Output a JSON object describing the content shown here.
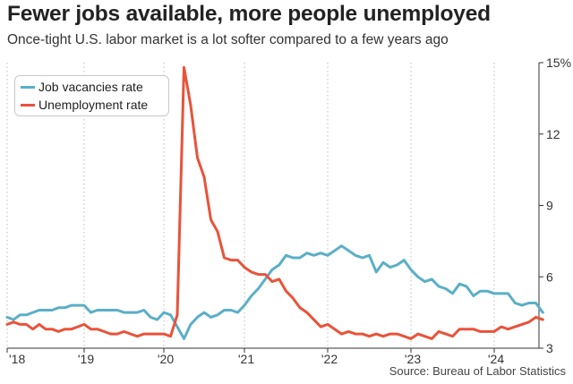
{
  "chart_data": {
    "type": "line",
    "title": "Fewer jobs available, more people unemployed",
    "subtitle": "Once-tight U.S. labor market is a lot softer compared to a few years ago",
    "source": "Source: Bureau of Labor Statistics",
    "ylim": [
      3,
      15
    ],
    "y_ticks": [
      3,
      6,
      9,
      12,
      15
    ],
    "y_tick_labels": [
      "3",
      "6",
      "9",
      "12",
      "15%"
    ],
    "x_tick_labels": [
      "'18",
      "'19",
      "'20",
      "'21",
      "'22",
      "'23",
      "'24"
    ],
    "x_range": [
      "2018-01",
      "2024-08"
    ],
    "grid": "vertical dotted at each year",
    "legend": "top-left",
    "series": [
      {
        "name": "Job vacancies rate",
        "color": "#5aafc7",
        "values": [
          {
            "x": "2018-01",
            "y": 4.3
          },
          {
            "x": "2018-02",
            "y": 4.2
          },
          {
            "x": "2018-03",
            "y": 4.4
          },
          {
            "x": "2018-04",
            "y": 4.4
          },
          {
            "x": "2018-05",
            "y": 4.5
          },
          {
            "x": "2018-06",
            "y": 4.6
          },
          {
            "x": "2018-07",
            "y": 4.6
          },
          {
            "x": "2018-08",
            "y": 4.6
          },
          {
            "x": "2018-09",
            "y": 4.7
          },
          {
            "x": "2018-10",
            "y": 4.7
          },
          {
            "x": "2018-11",
            "y": 4.8
          },
          {
            "x": "2018-12",
            "y": 4.8
          },
          {
            "x": "2019-01",
            "y": 4.8
          },
          {
            "x": "2019-02",
            "y": 4.5
          },
          {
            "x": "2019-03",
            "y": 4.6
          },
          {
            "x": "2019-04",
            "y": 4.6
          },
          {
            "x": "2019-05",
            "y": 4.6
          },
          {
            "x": "2019-06",
            "y": 4.6
          },
          {
            "x": "2019-07",
            "y": 4.5
          },
          {
            "x": "2019-08",
            "y": 4.5
          },
          {
            "x": "2019-09",
            "y": 4.5
          },
          {
            "x": "2019-10",
            "y": 4.6
          },
          {
            "x": "2019-11",
            "y": 4.3
          },
          {
            "x": "2019-12",
            "y": 4.2
          },
          {
            "x": "2020-01",
            "y": 4.5
          },
          {
            "x": "2020-02",
            "y": 4.4
          },
          {
            "x": "2020-03",
            "y": 3.9
          },
          {
            "x": "2020-04",
            "y": 3.4
          },
          {
            "x": "2020-05",
            "y": 4.0
          },
          {
            "x": "2020-06",
            "y": 4.3
          },
          {
            "x": "2020-07",
            "y": 4.5
          },
          {
            "x": "2020-08",
            "y": 4.3
          },
          {
            "x": "2020-09",
            "y": 4.4
          },
          {
            "x": "2020-10",
            "y": 4.6
          },
          {
            "x": "2020-11",
            "y": 4.6
          },
          {
            "x": "2020-12",
            "y": 4.5
          },
          {
            "x": "2021-01",
            "y": 4.8
          },
          {
            "x": "2021-02",
            "y": 5.2
          },
          {
            "x": "2021-03",
            "y": 5.5
          },
          {
            "x": "2021-04",
            "y": 5.9
          },
          {
            "x": "2021-05",
            "y": 6.3
          },
          {
            "x": "2021-06",
            "y": 6.5
          },
          {
            "x": "2021-07",
            "y": 6.9
          },
          {
            "x": "2021-08",
            "y": 6.8
          },
          {
            "x": "2021-09",
            "y": 6.8
          },
          {
            "x": "2021-10",
            "y": 7.0
          },
          {
            "x": "2021-11",
            "y": 6.9
          },
          {
            "x": "2021-12",
            "y": 7.0
          },
          {
            "x": "2022-01",
            "y": 6.9
          },
          {
            "x": "2022-02",
            "y": 7.1
          },
          {
            "x": "2022-03",
            "y": 7.3
          },
          {
            "x": "2022-04",
            "y": 7.1
          },
          {
            "x": "2022-05",
            "y": 6.9
          },
          {
            "x": "2022-06",
            "y": 6.8
          },
          {
            "x": "2022-07",
            "y": 6.9
          },
          {
            "x": "2022-08",
            "y": 6.2
          },
          {
            "x": "2022-09",
            "y": 6.6
          },
          {
            "x": "2022-10",
            "y": 6.4
          },
          {
            "x": "2022-11",
            "y": 6.5
          },
          {
            "x": "2022-12",
            "y": 6.7
          },
          {
            "x": "2023-01",
            "y": 6.3
          },
          {
            "x": "2023-02",
            "y": 6.0
          },
          {
            "x": "2023-03",
            "y": 5.8
          },
          {
            "x": "2023-04",
            "y": 5.9
          },
          {
            "x": "2023-05",
            "y": 5.6
          },
          {
            "x": "2023-06",
            "y": 5.5
          },
          {
            "x": "2023-07",
            "y": 5.3
          },
          {
            "x": "2023-08",
            "y": 5.7
          },
          {
            "x": "2023-09",
            "y": 5.6
          },
          {
            "x": "2023-10",
            "y": 5.2
          },
          {
            "x": "2023-11",
            "y": 5.4
          },
          {
            "x": "2023-12",
            "y": 5.4
          },
          {
            "x": "2024-01",
            "y": 5.3
          },
          {
            "x": "2024-02",
            "y": 5.3
          },
          {
            "x": "2024-03",
            "y": 5.3
          },
          {
            "x": "2024-04",
            "y": 4.9
          },
          {
            "x": "2024-05",
            "y": 4.8
          },
          {
            "x": "2024-06",
            "y": 4.9
          },
          {
            "x": "2024-07",
            "y": 4.9
          },
          {
            "x": "2024-08",
            "y": 4.5
          }
        ]
      },
      {
        "name": "Unemployment rate",
        "color": "#e8533a",
        "values": [
          {
            "x": "2018-01",
            "y": 4.0
          },
          {
            "x": "2018-02",
            "y": 4.1
          },
          {
            "x": "2018-03",
            "y": 4.0
          },
          {
            "x": "2018-04",
            "y": 4.0
          },
          {
            "x": "2018-05",
            "y": 3.8
          },
          {
            "x": "2018-06",
            "y": 4.0
          },
          {
            "x": "2018-07",
            "y": 3.8
          },
          {
            "x": "2018-08",
            "y": 3.8
          },
          {
            "x": "2018-09",
            "y": 3.7
          },
          {
            "x": "2018-10",
            "y": 3.8
          },
          {
            "x": "2018-11",
            "y": 3.8
          },
          {
            "x": "2018-12",
            "y": 3.9
          },
          {
            "x": "2019-01",
            "y": 4.0
          },
          {
            "x": "2019-02",
            "y": 3.8
          },
          {
            "x": "2019-03",
            "y": 3.8
          },
          {
            "x": "2019-04",
            "y": 3.7
          },
          {
            "x": "2019-05",
            "y": 3.6
          },
          {
            "x": "2019-06",
            "y": 3.6
          },
          {
            "x": "2019-07",
            "y": 3.7
          },
          {
            "x": "2019-08",
            "y": 3.6
          },
          {
            "x": "2019-09",
            "y": 3.5
          },
          {
            "x": "2019-10",
            "y": 3.6
          },
          {
            "x": "2019-11",
            "y": 3.6
          },
          {
            "x": "2019-12",
            "y": 3.6
          },
          {
            "x": "2020-01",
            "y": 3.6
          },
          {
            "x": "2020-02",
            "y": 3.5
          },
          {
            "x": "2020-03",
            "y": 4.4
          },
          {
            "x": "2020-04",
            "y": 14.8
          },
          {
            "x": "2020-05",
            "y": 13.2
          },
          {
            "x": "2020-06",
            "y": 11.0
          },
          {
            "x": "2020-07",
            "y": 10.2
          },
          {
            "x": "2020-08",
            "y": 8.4
          },
          {
            "x": "2020-09",
            "y": 7.9
          },
          {
            "x": "2020-10",
            "y": 6.8
          },
          {
            "x": "2020-11",
            "y": 6.7
          },
          {
            "x": "2020-12",
            "y": 6.7
          },
          {
            "x": "2021-01",
            "y": 6.4
          },
          {
            "x": "2021-02",
            "y": 6.2
          },
          {
            "x": "2021-03",
            "y": 6.1
          },
          {
            "x": "2021-04",
            "y": 6.1
          },
          {
            "x": "2021-05",
            "y": 5.8
          },
          {
            "x": "2021-06",
            "y": 5.9
          },
          {
            "x": "2021-07",
            "y": 5.4
          },
          {
            "x": "2021-08",
            "y": 5.1
          },
          {
            "x": "2021-09",
            "y": 4.7
          },
          {
            "x": "2021-10",
            "y": 4.5
          },
          {
            "x": "2021-11",
            "y": 4.2
          },
          {
            "x": "2021-12",
            "y": 3.9
          },
          {
            "x": "2022-01",
            "y": 4.0
          },
          {
            "x": "2022-02",
            "y": 3.8
          },
          {
            "x": "2022-03",
            "y": 3.6
          },
          {
            "x": "2022-04",
            "y": 3.7
          },
          {
            "x": "2022-05",
            "y": 3.6
          },
          {
            "x": "2022-06",
            "y": 3.6
          },
          {
            "x": "2022-07",
            "y": 3.5
          },
          {
            "x": "2022-08",
            "y": 3.6
          },
          {
            "x": "2022-09",
            "y": 3.5
          },
          {
            "x": "2022-10",
            "y": 3.6
          },
          {
            "x": "2022-11",
            "y": 3.6
          },
          {
            "x": "2022-12",
            "y": 3.5
          },
          {
            "x": "2023-01",
            "y": 3.4
          },
          {
            "x": "2023-02",
            "y": 3.6
          },
          {
            "x": "2023-03",
            "y": 3.5
          },
          {
            "x": "2023-04",
            "y": 3.4
          },
          {
            "x": "2023-05",
            "y": 3.7
          },
          {
            "x": "2023-06",
            "y": 3.6
          },
          {
            "x": "2023-07",
            "y": 3.5
          },
          {
            "x": "2023-08",
            "y": 3.8
          },
          {
            "x": "2023-09",
            "y": 3.8
          },
          {
            "x": "2023-10",
            "y": 3.8
          },
          {
            "x": "2023-11",
            "y": 3.7
          },
          {
            "x": "2023-12",
            "y": 3.7
          },
          {
            "x": "2024-01",
            "y": 3.7
          },
          {
            "x": "2024-02",
            "y": 3.9
          },
          {
            "x": "2024-03",
            "y": 3.8
          },
          {
            "x": "2024-04",
            "y": 3.9
          },
          {
            "x": "2024-05",
            "y": 4.0
          },
          {
            "x": "2024-06",
            "y": 4.1
          },
          {
            "x": "2024-07",
            "y": 4.3
          },
          {
            "x": "2024-08",
            "y": 4.2
          }
        ]
      }
    ]
  }
}
